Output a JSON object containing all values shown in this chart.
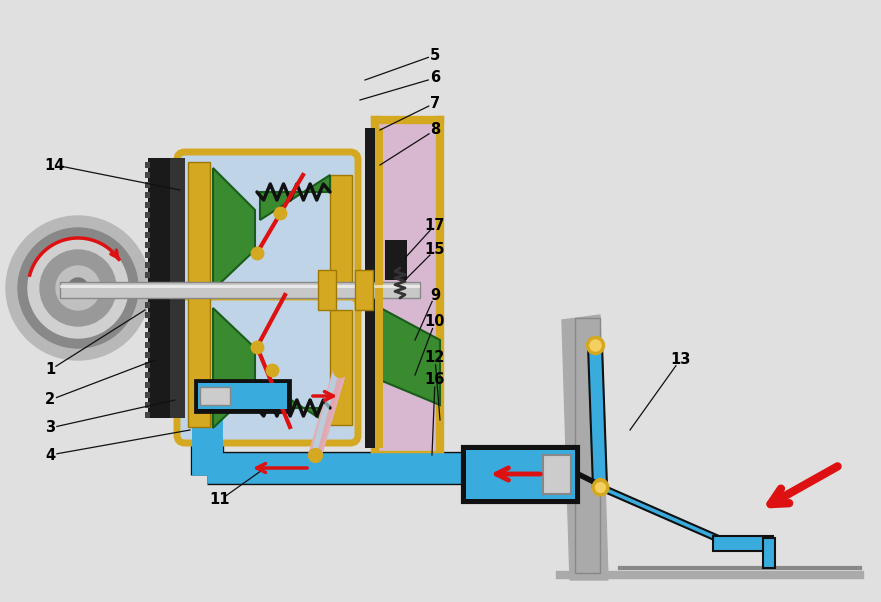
{
  "bg_color": "#e0e0e0",
  "label_color": "#000000",
  "label_fontsize": 10.5,
  "blue_pipe": "#3aabdd",
  "blue_dark": "#1a88bb",
  "gold": "#d4a820",
  "green_disc": "#3a8a30",
  "pink_fork": "#e0a8b0",
  "gray_shaft": "#cccccc",
  "black": "#111111",
  "pink_cover": "#d8b8d0",
  "red": "#dd1111"
}
